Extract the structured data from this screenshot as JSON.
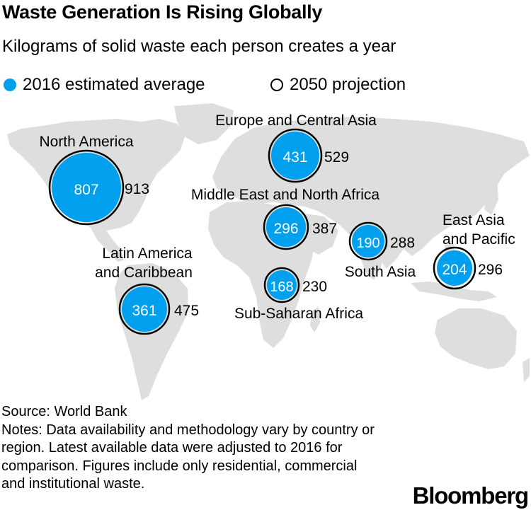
{
  "header": {
    "title": "Waste Generation Is Rising Globally",
    "subtitle": "Kilograms of solid waste each person creates a year"
  },
  "legend": {
    "est_2016": "2016 estimated average",
    "proj_2050": "2050 projection"
  },
  "colors": {
    "bubble_2016": "#00a0ee",
    "land": "#dedede",
    "ring_2050": "#000000"
  },
  "regions": [
    {
      "id": "north-america",
      "label": [
        "North America"
      ],
      "v2016": 807,
      "v2050": 913
    },
    {
      "id": "europe-central-asia",
      "label": [
        "Europe and Central Asia"
      ],
      "v2016": 431,
      "v2050": 529
    },
    {
      "id": "mena",
      "label": [
        "Middle East and North Africa"
      ],
      "v2016": 296,
      "v2050": 387
    },
    {
      "id": "south-asia",
      "label": [
        "South Asia"
      ],
      "v2016": 190,
      "v2050": 288
    },
    {
      "id": "east-asia-pacific",
      "label": [
        "East Asia",
        "and Pacific"
      ],
      "v2016": 204,
      "v2050": 296
    },
    {
      "id": "latin-america",
      "label": [
        "Latin America",
        "and Caribbean"
      ],
      "v2016": 361,
      "v2050": 475
    },
    {
      "id": "sub-saharan-africa",
      "label": [
        "Sub-Saharan Africa"
      ],
      "v2016": 168,
      "v2050": 230
    }
  ],
  "footer": {
    "source": "Source: World Bank",
    "notes": "Notes: Data availability and methodology vary by country or region. Latest available data were adjusted to 2016 for comparison. Figures include only residential, commercial and institutional waste."
  },
  "brand": "Bloomberg"
}
